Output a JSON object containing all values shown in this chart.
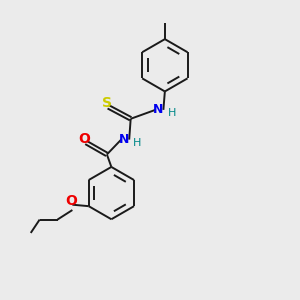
{
  "background_color": "#ebebeb",
  "bond_color": "#1a1a1a",
  "atom_colors": {
    "S": "#cccc00",
    "N": "#0000ee",
    "O": "#ee0000",
    "H": "#008888"
  },
  "figsize": [
    3.0,
    3.0
  ],
  "dpi": 100
}
